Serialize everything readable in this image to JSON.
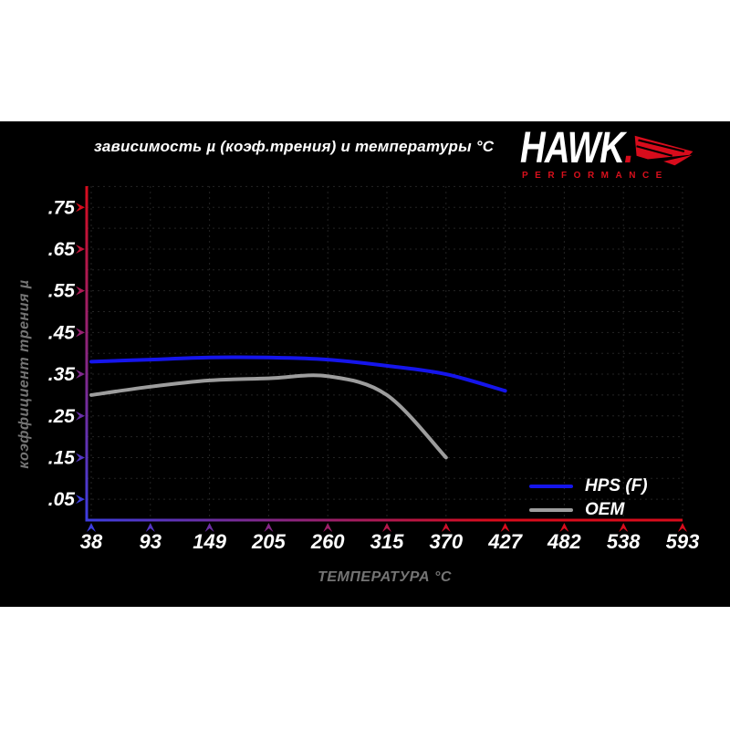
{
  "header": {
    "logo": {
      "brand": "HAWK",
      "period": ".",
      "sub": "PERFORMANCE",
      "accent_color": "#d80c1c"
    }
  },
  "legend": {
    "items": [
      {
        "label": "HPS (F)",
        "color": "#1515ec"
      },
      {
        "label": "OEM",
        "color": "#9d9d9d"
      }
    ]
  },
  "chart_data": {
    "type": "line",
    "title": "зависимость µ (коэф.трения) и температуры °C",
    "xlabel": "ТЕМПЕРАТУРА °C",
    "ylabel": "коэффициент трения µ",
    "x_ticks": {
      "values": [
        38,
        93,
        149,
        205,
        260,
        315,
        370,
        427,
        482,
        538,
        593
      ],
      "labels": [
        "38",
        "93",
        "149",
        "205",
        "260",
        "315",
        "370",
        "427",
        "482",
        "538",
        "593"
      ]
    },
    "y_ticks": {
      "values": [
        0.05,
        0.15,
        0.25,
        0.35,
        0.45,
        0.55,
        0.65,
        0.75
      ],
      "labels": [
        ".05",
        ".15",
        ".25",
        ".35",
        ".45",
        ".55",
        ".65",
        ".75"
      ]
    },
    "ylim": [
      0,
      0.8
    ],
    "grid": {
      "style": "dotted",
      "color": "#242424",
      "horizontal_step": 0.05,
      "vertical": "every_x_tick"
    },
    "axis_gradient": {
      "near_origin_color": "#3d3de0",
      "far_color": "#d80c1c"
    },
    "legend_position": "bottom-right",
    "series": [
      {
        "name": "HPS (F)",
        "color": "#1515ec",
        "x": [
          38,
          93,
          149,
          205,
          260,
          315,
          370,
          427
        ],
        "values": [
          0.38,
          0.385,
          0.39,
          0.39,
          0.385,
          0.37,
          0.35,
          0.31
        ]
      },
      {
        "name": "OEM",
        "color": "#9d9d9d",
        "x": [
          38,
          93,
          149,
          205,
          260,
          315,
          370
        ],
        "values": [
          0.3,
          0.32,
          0.335,
          0.34,
          0.345,
          0.3,
          0.15
        ]
      }
    ]
  }
}
